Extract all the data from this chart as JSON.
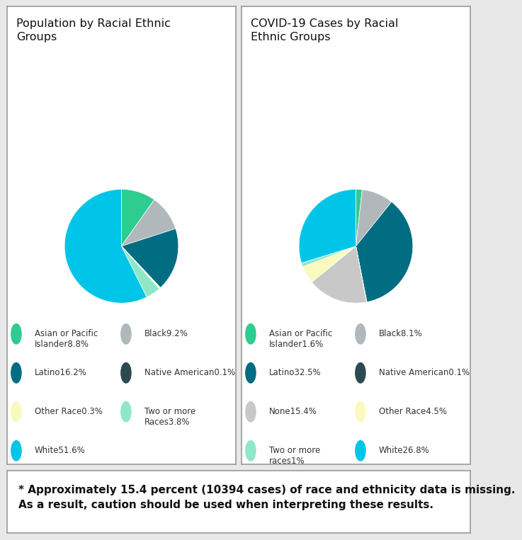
{
  "pop_values": [
    8.8,
    9.2,
    16.2,
    0.1,
    0.3,
    3.8,
    51.6
  ],
  "pop_colors": [
    "#2ecc8f",
    "#b0b8bc",
    "#006d82",
    "#2d4a52",
    "#fafabe",
    "#8ee8c8",
    "#00c5e8"
  ],
  "pop_legend": [
    {
      "label": "Asian or Pacific\nIslander",
      "pct": "8.8%",
      "col": 0
    },
    {
      "label": "Black",
      "pct": "9.2%",
      "col": 1
    },
    {
      "label": "Latino",
      "pct": "16.2%",
      "col": 0
    },
    {
      "label": "Native American",
      "pct": "0.1%",
      "col": 1
    },
    {
      "label": "Other Race",
      "pct": "0.3%",
      "col": 0
    },
    {
      "label": "Two or more\nRaces",
      "pct": "3.8%",
      "col": 1
    },
    {
      "label": "White",
      "pct": "51.6%",
      "col": 0
    }
  ],
  "covid_values": [
    1.6,
    8.1,
    32.5,
    0.1,
    15.4,
    4.5,
    1.0,
    26.8
  ],
  "covid_colors": [
    "#2ecc8f",
    "#b0b8bc",
    "#006d82",
    "#2d4a52",
    "#c8c8c8",
    "#fafabe",
    "#8ee8c8",
    "#00c5e8"
  ],
  "covid_legend": [
    {
      "label": "Asian or Pacific\nIslander",
      "pct": "1.6%",
      "col": 0
    },
    {
      "label": "Black",
      "pct": "8.1%",
      "col": 1
    },
    {
      "label": "Latino",
      "pct": "32.5%",
      "col": 0
    },
    {
      "label": "Native American",
      "pct": "0.1%",
      "col": 1
    },
    {
      "label": "None",
      "pct": "15.4%",
      "col": 0
    },
    {
      "label": "Other Race",
      "pct": "4.5%",
      "col": 1
    },
    {
      "label": "Two or more\nraces",
      "pct": "1%",
      "col": 0
    },
    {
      "label": "White",
      "pct": "26.8%",
      "col": 1
    }
  ],
  "title_pop": "Population by Racial Ethnic\nGroups",
  "title_covid": "COVID-19 Cases by Racial\nEthnic Groups",
  "footnote_line1": "* Approximately 15.4 percent (10394 cases) of race and ethnicity data is missing.",
  "footnote_line2": "As a result, caution should be used when interpreting these results.",
  "bg_color": "#e8e8e8",
  "panel_bg": "#ffffff",
  "border_color": "#999999",
  "title_fontsize": 11.5,
  "legend_fontsize": 8.5,
  "footnote_fontsize": 11.0
}
